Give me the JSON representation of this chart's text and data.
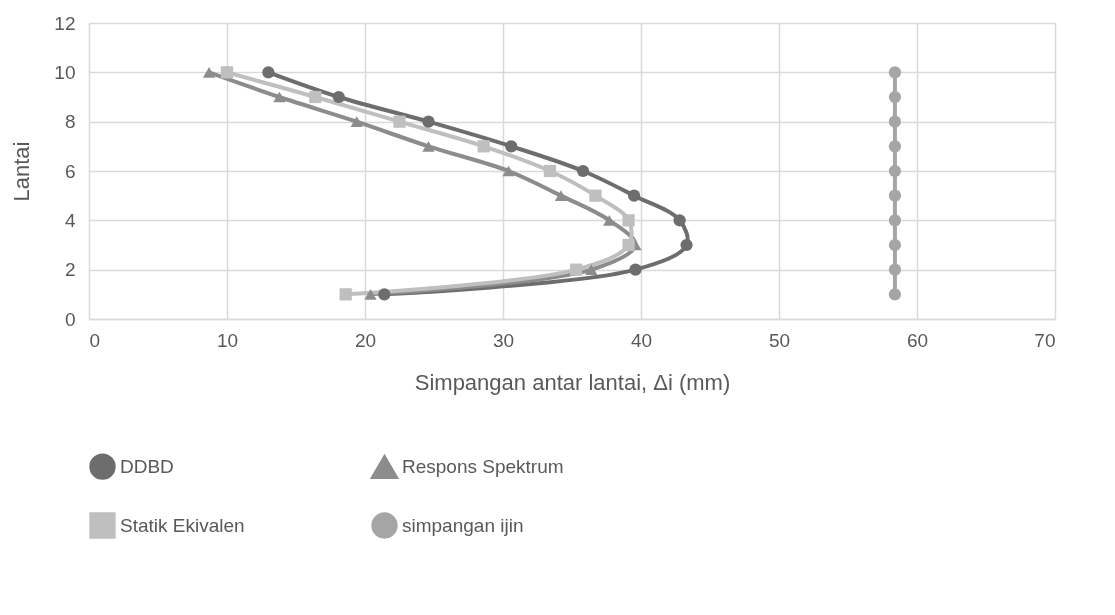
{
  "chart_data": {
    "type": "line",
    "xlabel": "Simpangan antar lantai, Δi (mm)",
    "ylabel": "Lantai",
    "xlim": [
      0,
      70
    ],
    "xticks": [
      0,
      10,
      20,
      30,
      40,
      50,
      60,
      70
    ],
    "ylim": [
      0,
      12
    ],
    "yticks": [
      0,
      2,
      4,
      6,
      8,
      10,
      12
    ],
    "grid": true,
    "legend": "bottom",
    "line_style": "solid",
    "series": [
      {
        "name": "DDBD",
        "color": "#6d6d6d",
        "marker": "circle",
        "x": [
          21.4,
          39.6,
          43.3,
          42.8,
          39.5,
          35.8,
          30.6,
          24.6,
          18.1,
          13.0
        ],
        "values": [
          1,
          2,
          3,
          4,
          5,
          6,
          7,
          8,
          9,
          10
        ]
      },
      {
        "name": "Respons Spektrum",
        "color": "#8c8c8c",
        "marker": "triangle",
        "x": [
          20.4,
          36.4,
          39.6,
          37.7,
          34.2,
          30.4,
          24.6,
          19.4,
          13.8,
          8.7
        ],
        "values": [
          1,
          2,
          3,
          4,
          5,
          6,
          7,
          8,
          9,
          10
        ]
      },
      {
        "name": "Statik Ekivalen",
        "color": "#bfbfbf",
        "marker": "square",
        "x": [
          18.6,
          35.3,
          39.1,
          39.1,
          36.7,
          33.4,
          28.6,
          22.5,
          16.4,
          10.0
        ],
        "values": [
          1,
          2,
          3,
          4,
          5,
          6,
          7,
          8,
          9,
          10
        ]
      },
      {
        "name": "simpangan ijin",
        "color": "#a5a5a5",
        "marker": "circle",
        "x": [
          58.4,
          58.4,
          58.4,
          58.4,
          58.4,
          58.4,
          58.4,
          58.4,
          58.4,
          58.4
        ],
        "values": [
          1,
          2,
          3,
          4,
          5,
          6,
          7,
          8,
          9,
          10
        ]
      }
    ]
  }
}
